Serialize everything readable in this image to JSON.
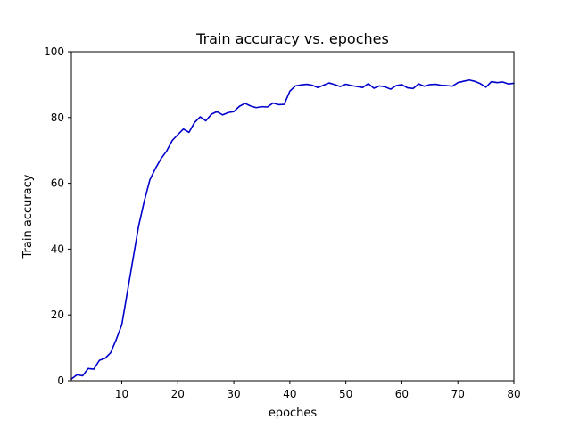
{
  "chart_data": {
    "type": "line",
    "title": "Train accuracy vs. epoches",
    "xlabel": "epoches",
    "ylabel": "Train accuracy",
    "xlim": [
      1,
      80
    ],
    "ylim": [
      0,
      100
    ],
    "xticks": [
      10,
      20,
      30,
      40,
      50,
      60,
      70,
      80
    ],
    "yticks": [
      0,
      20,
      40,
      60,
      80,
      100
    ],
    "grid": false,
    "series": [
      {
        "color": "#0000cc",
        "x": [
          1,
          2,
          3,
          4,
          5,
          6,
          7,
          8,
          9,
          10,
          11,
          12,
          13,
          14,
          15,
          16,
          17,
          18,
          19,
          20,
          21,
          22,
          23,
          24,
          25,
          26,
          27,
          28,
          29,
          30,
          31,
          32,
          33,
          34,
          35,
          36,
          37,
          38,
          39,
          40,
          41,
          42,
          43,
          44,
          45,
          46,
          47,
          48,
          49,
          50,
          51,
          52,
          53,
          54,
          55,
          56,
          57,
          58,
          59,
          60,
          61,
          62,
          63,
          64,
          65,
          66,
          67,
          68,
          69,
          70,
          71,
          72,
          73,
          74,
          75,
          76,
          77,
          78,
          79,
          80
        ],
        "values": [
          0.5,
          1.8,
          1.5,
          3.7,
          3.5,
          6.2,
          6.8,
          8.5,
          12.5,
          17.0,
          27.0,
          37.0,
          47.0,
          54.5,
          61.0,
          64.5,
          67.5,
          69.8,
          73.0,
          74.8,
          76.5,
          75.5,
          78.5,
          80.2,
          79.0,
          81.0,
          81.8,
          80.8,
          81.5,
          81.8,
          83.4,
          84.3,
          83.5,
          83.0,
          83.3,
          83.2,
          84.4,
          83.9,
          84.0,
          88.0,
          89.6,
          89.9,
          90.1,
          89.8,
          89.1,
          89.8,
          90.5,
          90.0,
          89.4,
          90.1,
          89.7,
          89.4,
          89.1,
          90.3,
          88.9,
          89.6,
          89.3,
          88.6,
          89.7,
          90.0,
          89.0,
          88.8,
          90.2,
          89.5,
          90.0,
          90.1,
          89.8,
          89.7,
          89.5,
          90.6,
          91.0,
          91.4,
          91.0,
          90.3,
          89.2,
          90.9,
          90.6,
          90.8,
          90.2,
          90.4
        ]
      }
    ]
  }
}
